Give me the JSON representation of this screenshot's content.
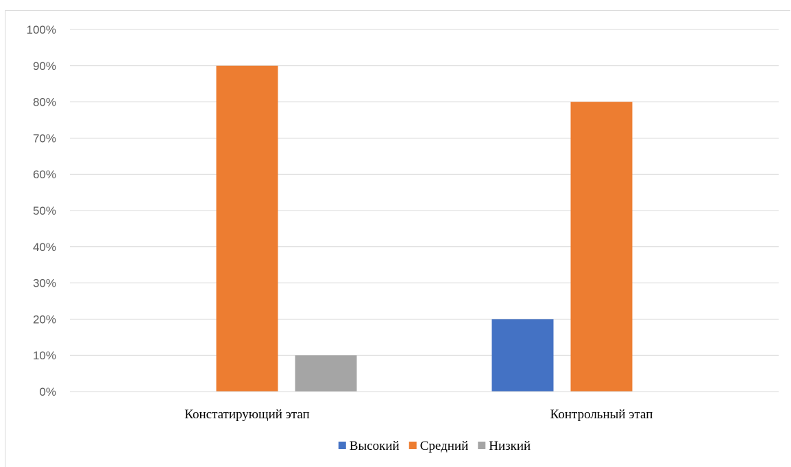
{
  "chart_data": {
    "type": "bar",
    "categories": [
      "Констатирующий этап",
      "Контрольный этап"
    ],
    "series": [
      {
        "name": "Высокий",
        "values": [
          0,
          20
        ],
        "color": "#4472c4"
      },
      {
        "name": "Средний",
        "values": [
          90,
          80
        ],
        "color": "#ed7d31"
      },
      {
        "name": "Низкий",
        "values": [
          10,
          0
        ],
        "color": "#a5a5a5"
      }
    ],
    "yticks": [
      "0%",
      "10%",
      "20%",
      "30%",
      "40%",
      "50%",
      "60%",
      "70%",
      "80%",
      "90%",
      "100%"
    ],
    "ylim": [
      0,
      100
    ],
    "grid": true,
    "legend_position": "bottom",
    "gridline_color": "#d9d9d9",
    "title": "",
    "xlabel": "",
    "ylabel": ""
  }
}
